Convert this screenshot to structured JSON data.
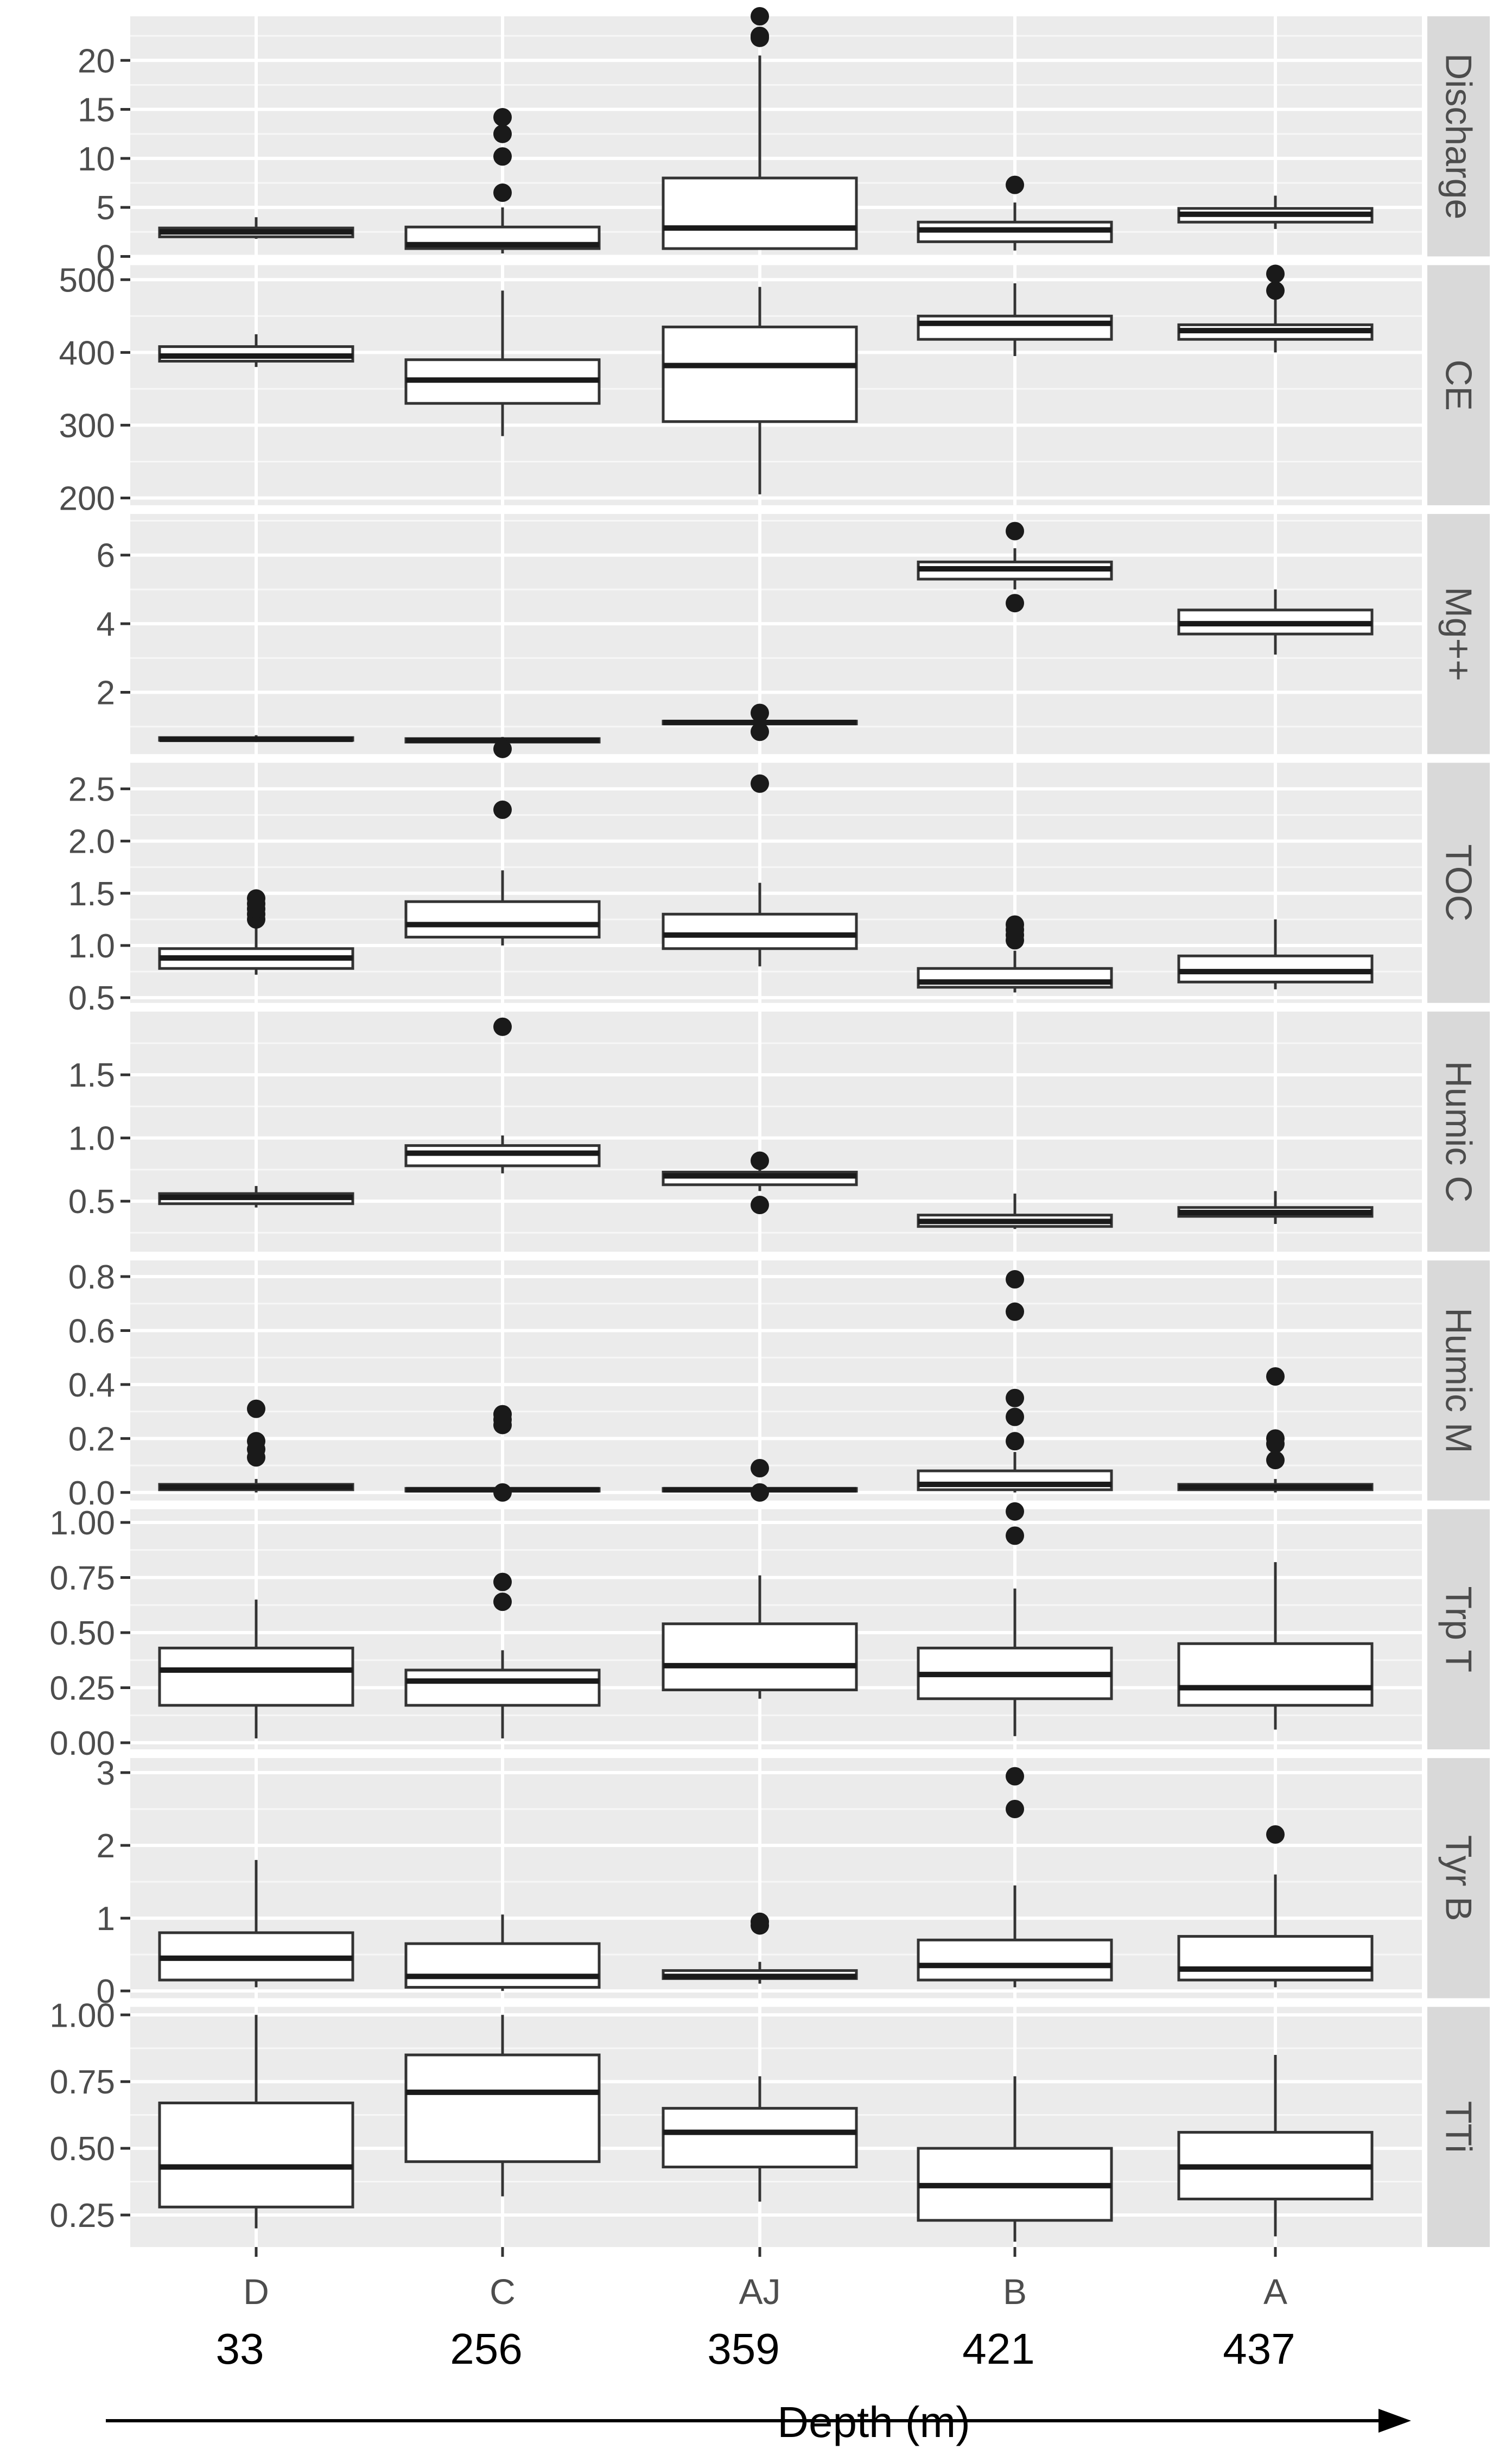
{
  "chart_data": {
    "type": "boxplot",
    "categories": [
      "D",
      "C",
      "AJ",
      "B",
      "A"
    ],
    "depths": [
      "33",
      "256",
      "359",
      "421",
      "437"
    ],
    "xlabel": "Depth (m)",
    "panels": [
      {
        "strip": "Discharge",
        "ylim": [
          0,
          24.5
        ],
        "ticks": [
          0,
          5,
          10,
          15,
          20
        ],
        "tick_labels": [
          "0",
          "5",
          "10",
          "15",
          "20"
        ],
        "boxes": [
          {
            "category": "D",
            "whisker_low": 1.8,
            "q1": 2.0,
            "median": 2.5,
            "q3": 2.9,
            "whisker_high": 4.0,
            "outliers": []
          },
          {
            "category": "C",
            "whisker_low": 0.3,
            "q1": 0.8,
            "median": 1.2,
            "q3": 3.0,
            "whisker_high": 5.0,
            "outliers": [
              6.5,
              10.2,
              12.5,
              14.2
            ]
          },
          {
            "category": "AJ",
            "whisker_low": 0.8,
            "q1": 0.8,
            "median": 2.9,
            "q3": 8.0,
            "whisker_high": 20.5,
            "outliers": [
              22.3,
              22.5,
              24.5
            ]
          },
          {
            "category": "B",
            "whisker_low": 0.6,
            "q1": 1.5,
            "median": 2.7,
            "q3": 3.5,
            "whisker_high": 5.5,
            "outliers": [
              7.3
            ]
          },
          {
            "category": "A",
            "whisker_low": 2.8,
            "q1": 3.5,
            "median": 4.3,
            "q3": 4.9,
            "whisker_high": 6.2,
            "outliers": []
          }
        ]
      },
      {
        "strip": "CE",
        "ylim": [
          190,
          520
        ],
        "ticks": [
          200,
          300,
          400,
          500
        ],
        "tick_labels": [
          "200",
          "300",
          "400",
          "500"
        ],
        "boxes": [
          {
            "category": "D",
            "whisker_low": 380,
            "q1": 388,
            "median": 395,
            "q3": 408,
            "whisker_high": 425,
            "outliers": []
          },
          {
            "category": "C",
            "whisker_low": 285,
            "q1": 330,
            "median": 362,
            "q3": 390,
            "whisker_high": 485,
            "outliers": []
          },
          {
            "category": "AJ",
            "whisker_low": 205,
            "q1": 305,
            "median": 382,
            "q3": 435,
            "whisker_high": 490,
            "outliers": []
          },
          {
            "category": "B",
            "whisker_low": 395,
            "q1": 418,
            "median": 440,
            "q3": 450,
            "whisker_high": 495,
            "outliers": []
          },
          {
            "category": "A",
            "whisker_low": 400,
            "q1": 418,
            "median": 430,
            "q3": 438,
            "whisker_high": 475,
            "outliers": [
              485,
              508
            ]
          }
        ]
      },
      {
        "strip": "Mg++",
        "ylim": [
          0.2,
          7.2
        ],
        "ticks": [
          2,
          4,
          6
        ],
        "tick_labels": [
          "2",
          "4",
          "6"
        ],
        "boxes": [
          {
            "category": "D",
            "whisker_low": 0.55,
            "q1": 0.6,
            "median": 0.63,
            "q3": 0.68,
            "whisker_high": 0.75,
            "outliers": []
          },
          {
            "category": "C",
            "whisker_low": 0.5,
            "q1": 0.55,
            "median": 0.6,
            "q3": 0.65,
            "whisker_high": 0.7,
            "outliers": [
              0.35
            ]
          },
          {
            "category": "AJ",
            "whisker_low": 1.05,
            "q1": 1.08,
            "median": 1.12,
            "q3": 1.16,
            "whisker_high": 1.25,
            "outliers": [
              0.85,
              1.4
            ]
          },
          {
            "category": "B",
            "whisker_low": 5.0,
            "q1": 5.3,
            "median": 5.6,
            "q3": 5.8,
            "whisker_high": 6.2,
            "outliers": [
              4.6,
              6.7
            ]
          },
          {
            "category": "A",
            "whisker_low": 3.1,
            "q1": 3.7,
            "median": 4.0,
            "q3": 4.4,
            "whisker_high": 5.0,
            "outliers": []
          }
        ]
      },
      {
        "strip": "TOC",
        "ylim": [
          0.45,
          2.75
        ],
        "ticks": [
          0.5,
          1.0,
          1.5,
          2.0,
          2.5
        ],
        "tick_labels": [
          "0.5",
          "1.0",
          "1.5",
          "2.0",
          "2.5"
        ],
        "boxes": [
          {
            "category": "D",
            "whisker_low": 0.72,
            "q1": 0.78,
            "median": 0.88,
            "q3": 0.97,
            "whisker_high": 1.18,
            "outliers": [
              1.25,
              1.3,
              1.35,
              1.4,
              1.45
            ]
          },
          {
            "category": "C",
            "whisker_low": 1.0,
            "q1": 1.08,
            "median": 1.2,
            "q3": 1.42,
            "whisker_high": 1.72,
            "outliers": [
              2.3
            ]
          },
          {
            "category": "AJ",
            "whisker_low": 0.8,
            "q1": 0.97,
            "median": 1.1,
            "q3": 1.3,
            "whisker_high": 1.6,
            "outliers": [
              2.55
            ]
          },
          {
            "category": "B",
            "whisker_low": 0.55,
            "q1": 0.6,
            "median": 0.65,
            "q3": 0.78,
            "whisker_high": 0.95,
            "outliers": [
              1.05,
              1.1,
              1.15,
              1.2
            ]
          },
          {
            "category": "A",
            "whisker_low": 0.58,
            "q1": 0.65,
            "median": 0.75,
            "q3": 0.9,
            "whisker_high": 1.25,
            "outliers": []
          }
        ]
      },
      {
        "strip": "Humic C",
        "ylim": [
          0.1,
          2.0
        ],
        "ticks": [
          0.5,
          1.0,
          1.5
        ],
        "tick_labels": [
          "0.5",
          "1.0",
          "1.5"
        ],
        "boxes": [
          {
            "category": "D",
            "whisker_low": 0.45,
            "q1": 0.48,
            "median": 0.53,
            "q3": 0.56,
            "whisker_high": 0.62,
            "outliers": []
          },
          {
            "category": "C",
            "whisker_low": 0.72,
            "q1": 0.78,
            "median": 0.88,
            "q3": 0.94,
            "whisker_high": 1.02,
            "outliers": [
              1.88
            ]
          },
          {
            "category": "AJ",
            "whisker_low": 0.58,
            "q1": 0.63,
            "median": 0.7,
            "q3": 0.73,
            "whisker_high": 0.78,
            "outliers": [
              0.47,
              0.82
            ]
          },
          {
            "category": "B",
            "whisker_low": 0.28,
            "q1": 0.3,
            "median": 0.34,
            "q3": 0.39,
            "whisker_high": 0.56,
            "outliers": []
          },
          {
            "category": "A",
            "whisker_low": 0.32,
            "q1": 0.38,
            "median": 0.41,
            "q3": 0.45,
            "whisker_high": 0.58,
            "outliers": []
          }
        ]
      },
      {
        "strip": "Humic M",
        "ylim": [
          -0.03,
          0.86
        ],
        "ticks": [
          0.0,
          0.2,
          0.4,
          0.6,
          0.8
        ],
        "tick_labels": [
          "0.0",
          "0.2",
          "0.4",
          "0.6",
          "0.8"
        ],
        "boxes": [
          {
            "category": "D",
            "whisker_low": 0.0,
            "q1": 0.01,
            "median": 0.02,
            "q3": 0.03,
            "whisker_high": 0.05,
            "outliers": [
              0.13,
              0.16,
              0.19,
              0.31
            ]
          },
          {
            "category": "C",
            "whisker_low": 0.0,
            "q1": 0.005,
            "median": 0.01,
            "q3": 0.015,
            "whisker_high": 0.02,
            "outliers": [
              0.0,
              0.25,
              0.27,
              0.29
            ]
          },
          {
            "category": "AJ",
            "whisker_low": 0.0,
            "q1": 0.005,
            "median": 0.01,
            "q3": 0.015,
            "whisker_high": 0.02,
            "outliers": [
              0.0,
              0.09
            ]
          },
          {
            "category": "B",
            "whisker_low": 0.0,
            "q1": 0.01,
            "median": 0.03,
            "q3": 0.08,
            "whisker_high": 0.15,
            "outliers": [
              0.19,
              0.28,
              0.35,
              0.67,
              0.79
            ]
          },
          {
            "category": "A",
            "whisker_low": 0.0,
            "q1": 0.01,
            "median": 0.02,
            "q3": 0.03,
            "whisker_high": 0.05,
            "outliers": [
              0.12,
              0.18,
              0.2,
              0.43
            ]
          }
        ]
      },
      {
        "strip": "Trp T",
        "ylim": [
          -0.03,
          1.06
        ],
        "ticks": [
          0.0,
          0.25,
          0.5,
          0.75,
          1.0
        ],
        "tick_labels": [
          "0.00",
          "0.25",
          "0.50",
          "0.75",
          "1.00"
        ],
        "boxes": [
          {
            "category": "D",
            "whisker_low": 0.02,
            "q1": 0.17,
            "median": 0.33,
            "q3": 0.43,
            "whisker_high": 0.65,
            "outliers": []
          },
          {
            "category": "C",
            "whisker_low": 0.02,
            "q1": 0.17,
            "median": 0.28,
            "q3": 0.33,
            "whisker_high": 0.42,
            "outliers": [
              0.64,
              0.73
            ]
          },
          {
            "category": "AJ",
            "whisker_low": 0.2,
            "q1": 0.24,
            "median": 0.35,
            "q3": 0.54,
            "whisker_high": 0.76,
            "outliers": []
          },
          {
            "category": "B",
            "whisker_low": 0.03,
            "q1": 0.2,
            "median": 0.31,
            "q3": 0.43,
            "whisker_high": 0.7,
            "outliers": [
              0.94,
              1.05
            ]
          },
          {
            "category": "A",
            "whisker_low": 0.06,
            "q1": 0.17,
            "median": 0.25,
            "q3": 0.45,
            "whisker_high": 0.82,
            "outliers": []
          }
        ]
      },
      {
        "strip": "Tyr B",
        "ylim": [
          -0.1,
          3.2
        ],
        "ticks": [
          0,
          1,
          2,
          3
        ],
        "tick_labels": [
          "0",
          "1",
          "2",
          "3"
        ],
        "boxes": [
          {
            "category": "D",
            "whisker_low": 0.05,
            "q1": 0.15,
            "median": 0.45,
            "q3": 0.8,
            "whisker_high": 1.8,
            "outliers": []
          },
          {
            "category": "C",
            "whisker_low": 0.0,
            "q1": 0.05,
            "median": 0.2,
            "q3": 0.65,
            "whisker_high": 1.05,
            "outliers": []
          },
          {
            "category": "AJ",
            "whisker_low": 0.1,
            "q1": 0.17,
            "median": 0.2,
            "q3": 0.28,
            "whisker_high": 0.4,
            "outliers": [
              0.9,
              0.95
            ]
          },
          {
            "category": "B",
            "whisker_low": 0.05,
            "q1": 0.15,
            "median": 0.35,
            "q3": 0.7,
            "whisker_high": 1.45,
            "outliers": [
              2.5,
              2.95
            ]
          },
          {
            "category": "A",
            "whisker_low": 0.05,
            "q1": 0.15,
            "median": 0.3,
            "q3": 0.75,
            "whisker_high": 1.6,
            "outliers": [
              2.15
            ]
          }
        ]
      },
      {
        "strip": "TTi",
        "ylim": [
          0.13,
          1.03
        ],
        "ticks": [
          0.25,
          0.5,
          0.75,
          1.0
        ],
        "tick_labels": [
          "0.25",
          "0.50",
          "0.75",
          "1.00"
        ],
        "boxes": [
          {
            "category": "D",
            "whisker_low": 0.2,
            "q1": 0.28,
            "median": 0.43,
            "q3": 0.67,
            "whisker_high": 1.0,
            "outliers": []
          },
          {
            "category": "C",
            "whisker_low": 0.32,
            "q1": 0.45,
            "median": 0.71,
            "q3": 0.85,
            "whisker_high": 1.0,
            "outliers": []
          },
          {
            "category": "AJ",
            "whisker_low": 0.3,
            "q1": 0.43,
            "median": 0.56,
            "q3": 0.65,
            "whisker_high": 0.77,
            "outliers": []
          },
          {
            "category": "B",
            "whisker_low": 0.15,
            "q1": 0.23,
            "median": 0.36,
            "q3": 0.5,
            "whisker_high": 0.77,
            "outliers": []
          },
          {
            "category": "A",
            "whisker_low": 0.17,
            "q1": 0.31,
            "median": 0.43,
            "q3": 0.56,
            "whisker_high": 0.85,
            "outliers": []
          }
        ]
      }
    ]
  }
}
